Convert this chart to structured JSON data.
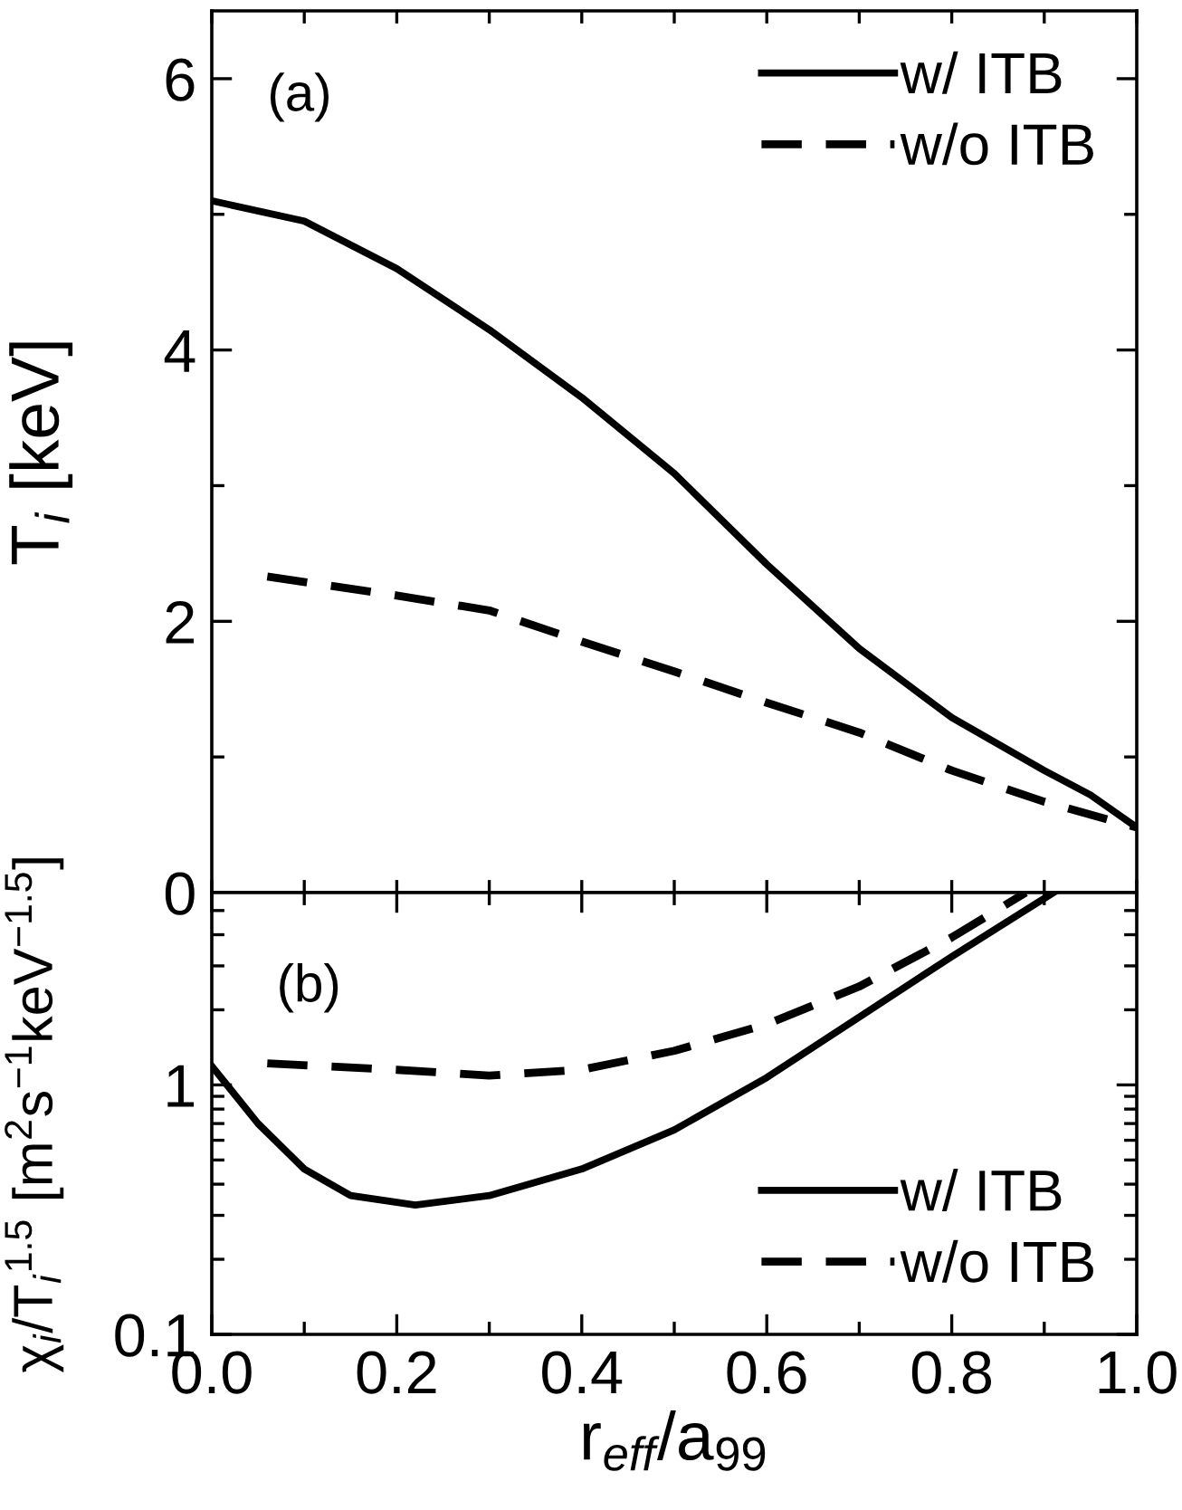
{
  "chart_data": [
    {
      "type": "line",
      "ylabel": "T$_{i}$ [keV]",
      "annotations": [
        "(a)"
      ],
      "xlim": [
        0,
        1
      ],
      "ylim": [
        0,
        6.5
      ],
      "xticks": [
        {
          "value": 0,
          "label": null
        },
        {
          "value": 0.1,
          "label": null
        },
        {
          "value": 0.2,
          "label": null
        },
        {
          "value": 0.3,
          "label": null
        },
        {
          "value": 0.4,
          "label": null
        },
        {
          "value": 0.5,
          "label": null
        },
        {
          "value": 0.6,
          "label": null
        },
        {
          "value": 0.7,
          "label": null
        },
        {
          "value": 0.8,
          "label": null
        },
        {
          "value": 0.9,
          "label": null
        },
        {
          "value": 1,
          "label": null
        }
      ],
      "yticks": [
        0,
        {
          "value": 1,
          "label": null
        },
        2,
        {
          "value": 3,
          "label": null
        },
        4,
        {
          "value": 5,
          "label": null
        },
        6
      ],
      "tick_labels": "y",
      "legend": "top right",
      "grid": false,
      "series": [
        {
          "name": "w/ ITB",
          "color": "#000000",
          "line_style": "solid",
          "x": [
            0,
            0.1,
            0.2,
            0.3,
            0.4,
            0.5,
            0.6,
            0.7,
            0.8,
            0.9,
            0.95,
            1.0
          ],
          "values": [
            5.1,
            4.95,
            4.6,
            4.15,
            3.65,
            3.09,
            2.42,
            1.8,
            1.29,
            0.9,
            0.72,
            0.48
          ]
        },
        {
          "name": "w/o ITB",
          "color": "#000000",
          "line_style": "dashed",
          "x": [
            0.06,
            0.2,
            0.3,
            0.4,
            0.5,
            0.6,
            0.7,
            0.8,
            0.9,
            1.0
          ],
          "values": [
            2.33,
            2.19,
            2.08,
            1.85,
            1.63,
            1.4,
            1.18,
            0.9,
            0.67,
            0.48
          ]
        }
      ]
    },
    {
      "type": "line",
      "xlabel": "r$_{eff}$/a$_{99}$",
      "ylabel": "χ$_{i}$/T$_{i}$$^{1.5}$ [m$^{2}$s$^{−1}$keV$^{−1.5}$]",
      "annotations": [
        "(b)"
      ],
      "log": "y",
      "xlim": [
        0,
        1
      ],
      "ylim": [
        0.1,
        5.9
      ],
      "xticks": [
        {
          "value": 0,
          "label": "0.0"
        },
        {
          "value": 0.1,
          "label": null
        },
        0.2,
        {
          "value": 0.3,
          "label": null
        },
        0.4,
        {
          "value": 0.5,
          "label": null
        },
        0.6,
        {
          "value": 0.7,
          "label": null
        },
        0.8,
        {
          "value": 0.9,
          "label": null
        },
        {
          "value": 1,
          "label": "1.0"
        }
      ],
      "yticks": [
        0.1,
        {
          "value": 0.2,
          "label": null
        },
        {
          "value": 0.3,
          "label": null
        },
        {
          "value": 0.4,
          "label": null
        },
        {
          "value": 0.5,
          "label": null
        },
        {
          "value": 0.6,
          "label": null
        },
        {
          "value": 0.7,
          "label": null
        },
        {
          "value": 0.8,
          "label": null
        },
        {
          "value": 0.9,
          "label": null
        },
        1,
        {
          "value": 2,
          "label": null
        },
        {
          "value": 3,
          "label": null
        },
        {
          "value": 4,
          "label": null
        },
        {
          "value": 5,
          "label": null
        }
      ],
      "legend": "bottom right",
      "grid": false,
      "series": [
        {
          "name": "w/ ITB",
          "color": "#000000",
          "line_style": "solid",
          "x": [
            0,
            0.05,
            0.1,
            0.15,
            0.22,
            0.3,
            0.4,
            0.5,
            0.6,
            0.7,
            0.8,
            0.91
          ],
          "values": [
            1.19,
            0.7,
            0.46,
            0.36,
            0.33,
            0.36,
            0.46,
            0.66,
            1.07,
            1.87,
            3.27,
            5.9
          ]
        },
        {
          "name": "w/o ITB",
          "color": "#000000",
          "line_style": "dashed",
          "x": [
            0.06,
            0.2,
            0.3,
            0.4,
            0.5,
            0.6,
            0.7,
            0.8,
            0.88
          ],
          "values": [
            1.22,
            1.15,
            1.09,
            1.15,
            1.37,
            1.75,
            2.48,
            3.9,
            5.9
          ]
        }
      ]
    }
  ]
}
